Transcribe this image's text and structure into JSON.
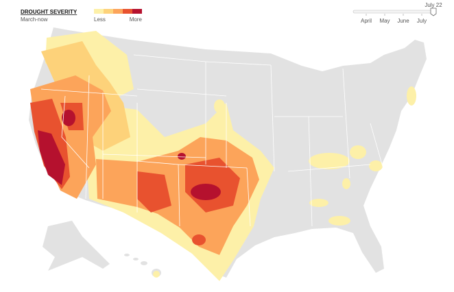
{
  "header": {
    "title": "DROUGHT SEVERITY",
    "subtitle": "March-now"
  },
  "legend": {
    "low": "Less",
    "high": "More",
    "colors": [
      "#fdf0a8",
      "#fdd27a",
      "#fca45a",
      "#e8522f",
      "#b5112e"
    ]
  },
  "timeline": {
    "current": "July 22",
    "months": [
      "April",
      "May",
      "June",
      "July"
    ]
  }
}
